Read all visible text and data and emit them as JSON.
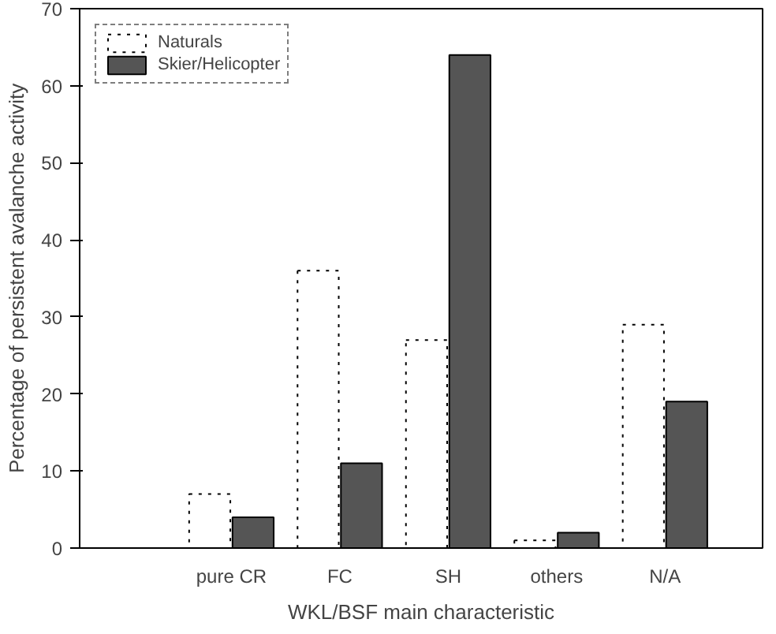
{
  "chart_data": {
    "type": "bar",
    "xlabel": "WKL/BSF main characteristic",
    "ylabel": "Percentage of persistent avalanche activity",
    "categories": [
      "pure CR",
      "FC",
      "SH",
      "others",
      "N/A"
    ],
    "series": [
      {
        "name": "Naturals",
        "color": "#ffffff",
        "values": [
          7,
          36,
          27,
          1,
          29
        ]
      },
      {
        "name": "Skier/Helicopter",
        "color": "#555555",
        "values": [
          4,
          11,
          64,
          2,
          19
        ]
      }
    ],
    "ylim": [
      0,
      70
    ],
    "yticks": [
      0,
      10,
      20,
      30,
      40,
      50,
      60,
      70
    ],
    "grid": false,
    "legend": "top left"
  }
}
